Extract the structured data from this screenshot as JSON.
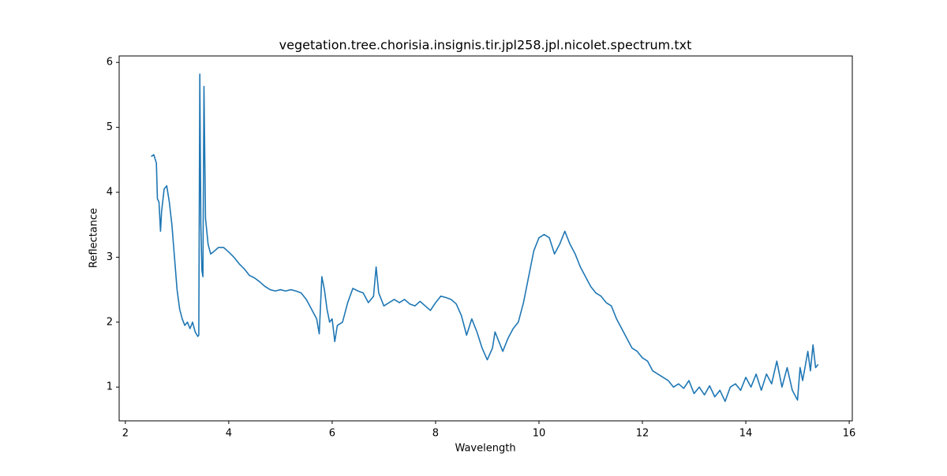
{
  "chart_data": {
    "type": "line",
    "title": "vegetation.tree.chorisia.insignis.tir.jpl258.jpl.nicolet.spectrum.txt",
    "x_label": "Wavelength",
    "y_label": "Reflectance",
    "xlim": [
      1.88,
      16.06
    ],
    "ylim": [
      0.48,
      6.1
    ],
    "xticks": [
      2,
      4,
      6,
      8,
      10,
      12,
      14,
      16
    ],
    "yticks": [
      1,
      2,
      3,
      4,
      5,
      6
    ],
    "series": [
      {
        "color": "#1f77b4",
        "x": [
          2.5,
          2.55,
          2.6,
          2.62,
          2.65,
          2.68,
          2.7,
          2.75,
          2.8,
          2.85,
          2.9,
          2.95,
          3.0,
          3.05,
          3.1,
          3.15,
          3.2,
          3.25,
          3.3,
          3.35,
          3.4,
          3.42,
          3.44,
          3.46,
          3.48,
          3.5,
          3.52,
          3.55,
          3.6,
          3.65,
          3.7,
          3.8,
          3.9,
          4.0,
          4.1,
          4.2,
          4.3,
          4.4,
          4.5,
          4.6,
          4.7,
          4.8,
          4.9,
          5.0,
          5.1,
          5.2,
          5.3,
          5.4,
          5.5,
          5.6,
          5.7,
          5.75,
          5.8,
          5.85,
          5.9,
          5.95,
          6.0,
          6.05,
          6.1,
          6.2,
          6.3,
          6.4,
          6.5,
          6.6,
          6.7,
          6.8,
          6.85,
          6.9,
          7.0,
          7.1,
          7.2,
          7.3,
          7.4,
          7.5,
          7.6,
          7.7,
          7.8,
          7.9,
          8.0,
          8.1,
          8.2,
          8.3,
          8.4,
          8.5,
          8.6,
          8.7,
          8.8,
          8.9,
          9.0,
          9.1,
          9.15,
          9.2,
          9.3,
          9.4,
          9.5,
          9.6,
          9.7,
          9.8,
          9.9,
          10.0,
          10.1,
          10.2,
          10.3,
          10.4,
          10.5,
          10.6,
          10.7,
          10.8,
          10.9,
          11.0,
          11.1,
          11.2,
          11.3,
          11.4,
          11.5,
          11.6,
          11.7,
          11.8,
          11.9,
          12.0,
          12.1,
          12.2,
          12.3,
          12.4,
          12.5,
          12.6,
          12.7,
          12.8,
          12.9,
          13.0,
          13.1,
          13.2,
          13.3,
          13.4,
          13.5,
          13.6,
          13.7,
          13.8,
          13.9,
          14.0,
          14.1,
          14.2,
          14.3,
          14.4,
          14.5,
          14.6,
          14.7,
          14.8,
          14.9,
          15.0,
          15.05,
          15.1,
          15.2,
          15.25,
          15.3,
          15.35,
          15.4
        ],
        "values": [
          4.55,
          4.58,
          4.45,
          3.9,
          3.85,
          3.4,
          3.7,
          4.05,
          4.1,
          3.85,
          3.5,
          3.0,
          2.5,
          2.2,
          2.05,
          1.95,
          2.0,
          1.9,
          2.0,
          1.85,
          1.78,
          1.8,
          5.82,
          3.5,
          2.8,
          2.7,
          5.63,
          3.6,
          3.2,
          3.05,
          3.08,
          3.15,
          3.15,
          3.08,
          3.0,
          2.9,
          2.82,
          2.72,
          2.68,
          2.62,
          2.55,
          2.5,
          2.48,
          2.5,
          2.48,
          2.5,
          2.48,
          2.45,
          2.35,
          2.2,
          2.05,
          1.82,
          2.7,
          2.5,
          2.2,
          2.0,
          2.05,
          1.7,
          1.95,
          2.0,
          2.3,
          2.52,
          2.48,
          2.45,
          2.3,
          2.4,
          2.85,
          2.45,
          2.25,
          2.3,
          2.35,
          2.3,
          2.35,
          2.28,
          2.25,
          2.32,
          2.25,
          2.18,
          2.3,
          2.4,
          2.38,
          2.35,
          2.28,
          2.1,
          1.8,
          2.05,
          1.85,
          1.6,
          1.42,
          1.6,
          1.85,
          1.75,
          1.55,
          1.75,
          1.9,
          2.0,
          2.3,
          2.7,
          3.1,
          3.3,
          3.35,
          3.3,
          3.05,
          3.2,
          3.4,
          3.2,
          3.05,
          2.85,
          2.7,
          2.55,
          2.45,
          2.4,
          2.3,
          2.25,
          2.05,
          1.9,
          1.75,
          1.6,
          1.55,
          1.45,
          1.4,
          1.25,
          1.2,
          1.15,
          1.1,
          1.0,
          1.05,
          0.98,
          1.1,
          0.9,
          1.0,
          0.88,
          1.02,
          0.85,
          0.95,
          0.78,
          1.0,
          1.05,
          0.95,
          1.15,
          1.0,
          1.2,
          0.95,
          1.2,
          1.05,
          1.4,
          1.0,
          1.3,
          0.95,
          0.8,
          1.3,
          1.1,
          1.55,
          1.25,
          1.65,
          1.3,
          1.35
        ]
      }
    ]
  }
}
